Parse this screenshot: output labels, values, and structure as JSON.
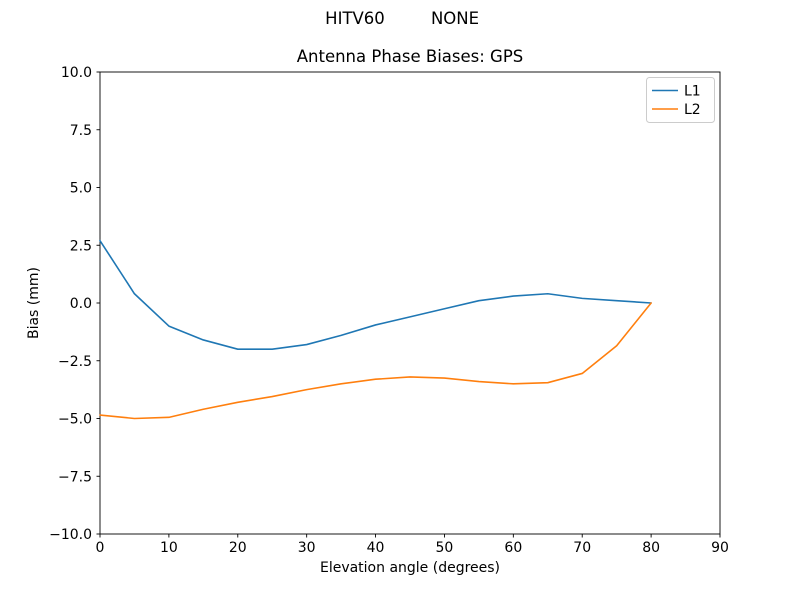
{
  "figure": {
    "suptitle_left": "HITV60",
    "suptitle_right": "NONE"
  },
  "chart_data": {
    "type": "line",
    "suptitle": "HITV60          NONE",
    "title": "Antenna Phase Biases: GPS",
    "xlabel": "Elevation angle (degrees)",
    "ylabel": "Bias (mm)",
    "xlim": [
      0,
      90
    ],
    "ylim": [
      -10,
      10
    ],
    "grid": false,
    "background": "#ffffff",
    "axis_color": "#000000",
    "xticks": {
      "values": [
        0,
        10,
        20,
        30,
        40,
        50,
        60,
        70,
        80,
        90
      ],
      "labels": [
        "0",
        "10",
        "20",
        "30",
        "40",
        "50",
        "60",
        "70",
        "80",
        "90"
      ]
    },
    "yticks": {
      "values": [
        10,
        7.5,
        5,
        2.5,
        0,
        -2.5,
        -5,
        -7.5,
        -10
      ],
      "labels": [
        "10.0",
        "7.5",
        "5.0",
        "2.5",
        "0.0",
        "−2.5",
        "−5.0",
        "−7.5",
        "−10.0"
      ]
    },
    "x": [
      0,
      5,
      10,
      15,
      20,
      25,
      30,
      35,
      40,
      45,
      50,
      55,
      60,
      65,
      70,
      75,
      80
    ],
    "series": [
      {
        "name": "L1",
        "color": "#1f77b4",
        "values": [
          2.7,
          0.4,
          -1.0,
          -1.6,
          -2.0,
          -2.0,
          -1.8,
          -1.4,
          -0.95,
          -0.6,
          -0.25,
          0.1,
          0.3,
          0.4,
          0.2,
          0.1,
          0.0
        ]
      },
      {
        "name": "L2",
        "color": "#ff7f0e",
        "values": [
          -4.85,
          -5.0,
          -4.95,
          -4.6,
          -4.3,
          -4.05,
          -3.75,
          -3.5,
          -3.3,
          -3.2,
          -3.25,
          -3.4,
          -3.5,
          -3.45,
          -3.05,
          -1.85,
          0.0
        ]
      }
    ],
    "legend": {
      "position": "upper right",
      "entries": [
        "L1",
        "L2"
      ],
      "border_color": "#cccccc",
      "background": "#ffffff"
    }
  }
}
